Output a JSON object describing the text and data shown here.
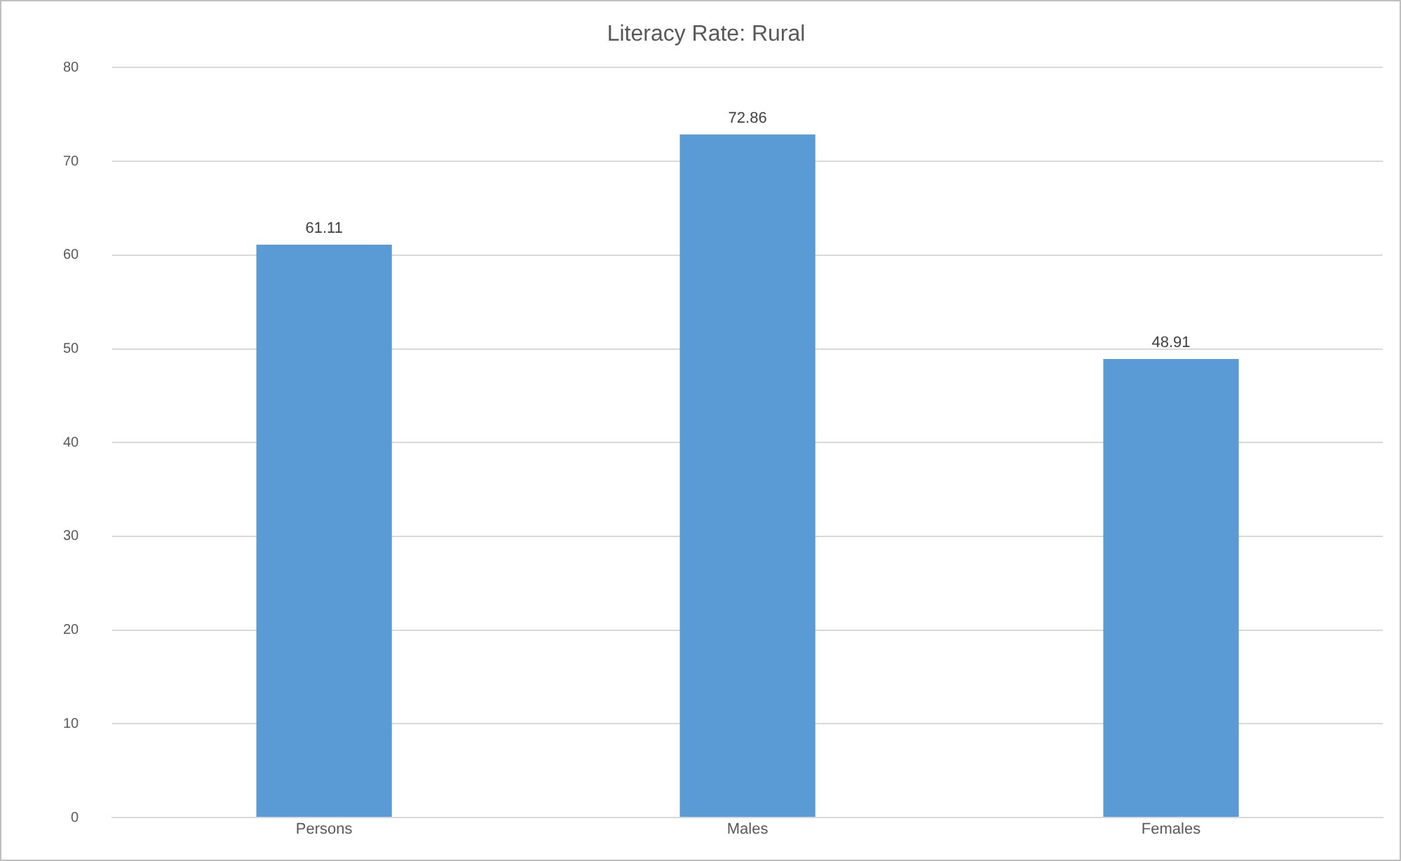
{
  "chart_data": {
    "type": "bar",
    "title": "Literacy Rate: Rural",
    "categories": [
      "Persons",
      "Males",
      "Females"
    ],
    "values": [
      61.11,
      72.86,
      48.91
    ],
    "color": "#5b9bd5",
    "ylim": [
      0,
      80
    ],
    "yticks": [
      0,
      10,
      20,
      30,
      40,
      50,
      60,
      70,
      80
    ],
    "grid": "y",
    "data_labels": true,
    "legend": false
  }
}
